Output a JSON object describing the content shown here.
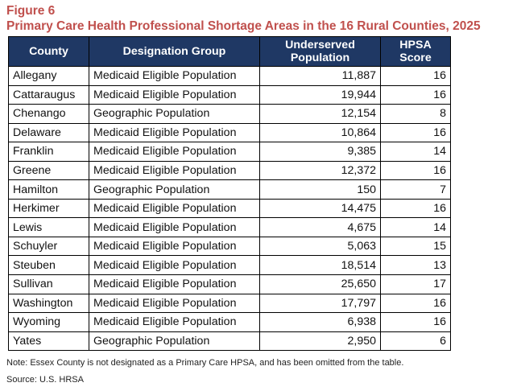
{
  "figure": {
    "label": "Figure 6",
    "title": "Primary Care Health Professional Shortage Areas in the 16 Rural Counties, 2025"
  },
  "table": {
    "headers": {
      "county": "County",
      "designation": "Designation Group",
      "population_line1": "Underserved",
      "population_line2": "Population",
      "score_line1": "HPSA",
      "score_line2": "Score"
    },
    "header_color": "#1f3864",
    "rows": [
      {
        "county": "Allegany",
        "designation": "Medicaid Eligible Population",
        "population": "11,887",
        "score": "16"
      },
      {
        "county": "Cattaraugus",
        "designation": "Medicaid Eligible Population",
        "population": "19,944",
        "score": "16"
      },
      {
        "county": "Chenango",
        "designation": "Geographic Population",
        "population": "12,154",
        "score": "8"
      },
      {
        "county": "Delaware",
        "designation": "Medicaid Eligible Population",
        "population": "10,864",
        "score": "16"
      },
      {
        "county": "Franklin",
        "designation": "Medicaid Eligible Population",
        "population": "9,385",
        "score": "14"
      },
      {
        "county": "Greene",
        "designation": "Medicaid Eligible Population",
        "population": "12,372",
        "score": "16"
      },
      {
        "county": "Hamilton",
        "designation": "Geographic Population",
        "population": "150",
        "score": "7"
      },
      {
        "county": "Herkimer",
        "designation": "Medicaid Eligible Population",
        "population": "14,475",
        "score": "16"
      },
      {
        "county": "Lewis",
        "designation": "Medicaid Eligible Population",
        "population": "4,675",
        "score": "14"
      },
      {
        "county": "Schuyler",
        "designation": "Medicaid Eligible Population",
        "population": "5,063",
        "score": "15"
      },
      {
        "county": "Steuben",
        "designation": "Medicaid Eligible Population",
        "population": "18,514",
        "score": "13"
      },
      {
        "county": "Sullivan",
        "designation": "Medicaid Eligible Population",
        "population": "25,650",
        "score": "17"
      },
      {
        "county": "Washington",
        "designation": "Medicaid Eligible Population",
        "population": "17,797",
        "score": "16"
      },
      {
        "county": "Wyoming",
        "designation": "Medicaid Eligible Population",
        "population": "6,938",
        "score": "16"
      },
      {
        "county": "Yates",
        "designation": "Geographic Population",
        "population": "2,950",
        "score": "6"
      }
    ]
  },
  "footer": {
    "note": "Note: Essex County is not designated as a Primary Care HPSA, and has been omitted from the table.",
    "source": "Source: U.S. HRSA"
  }
}
